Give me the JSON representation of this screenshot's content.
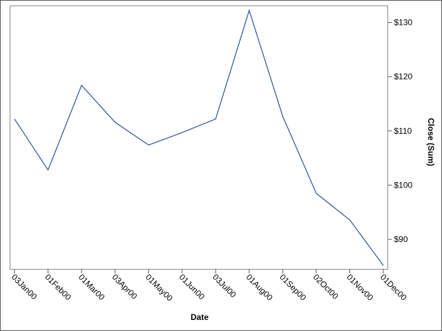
{
  "chart_data": {
    "type": "line",
    "x_label": "Date",
    "y_label": "Close (Sum)",
    "categories": [
      "03Jan00",
      "01Feb00",
      "01Mar00",
      "03Apr00",
      "01May00",
      "01Jun00",
      "03Jul00",
      "01Aug00",
      "01Sep00",
      "02Oct00",
      "01Nov00",
      "01Dec00"
    ],
    "series": [
      {
        "name": "Close",
        "color": "#2a4d9b",
        "values": [
          112.2,
          102.8,
          118.4,
          111.6,
          107.4,
          109.7,
          112.2,
          132.2,
          112.7,
          98.5,
          93.6,
          85.2
        ]
      }
    ],
    "ylim": [
      84.5,
      133.05
    ],
    "yticks": [
      {
        "value": 90,
        "label": "$90"
      },
      {
        "value": 100,
        "label": "$100"
      },
      {
        "value": 110,
        "label": "$110"
      },
      {
        "value": 120,
        "label": "$120"
      },
      {
        "value": 130,
        "label": "$130"
      }
    ]
  }
}
